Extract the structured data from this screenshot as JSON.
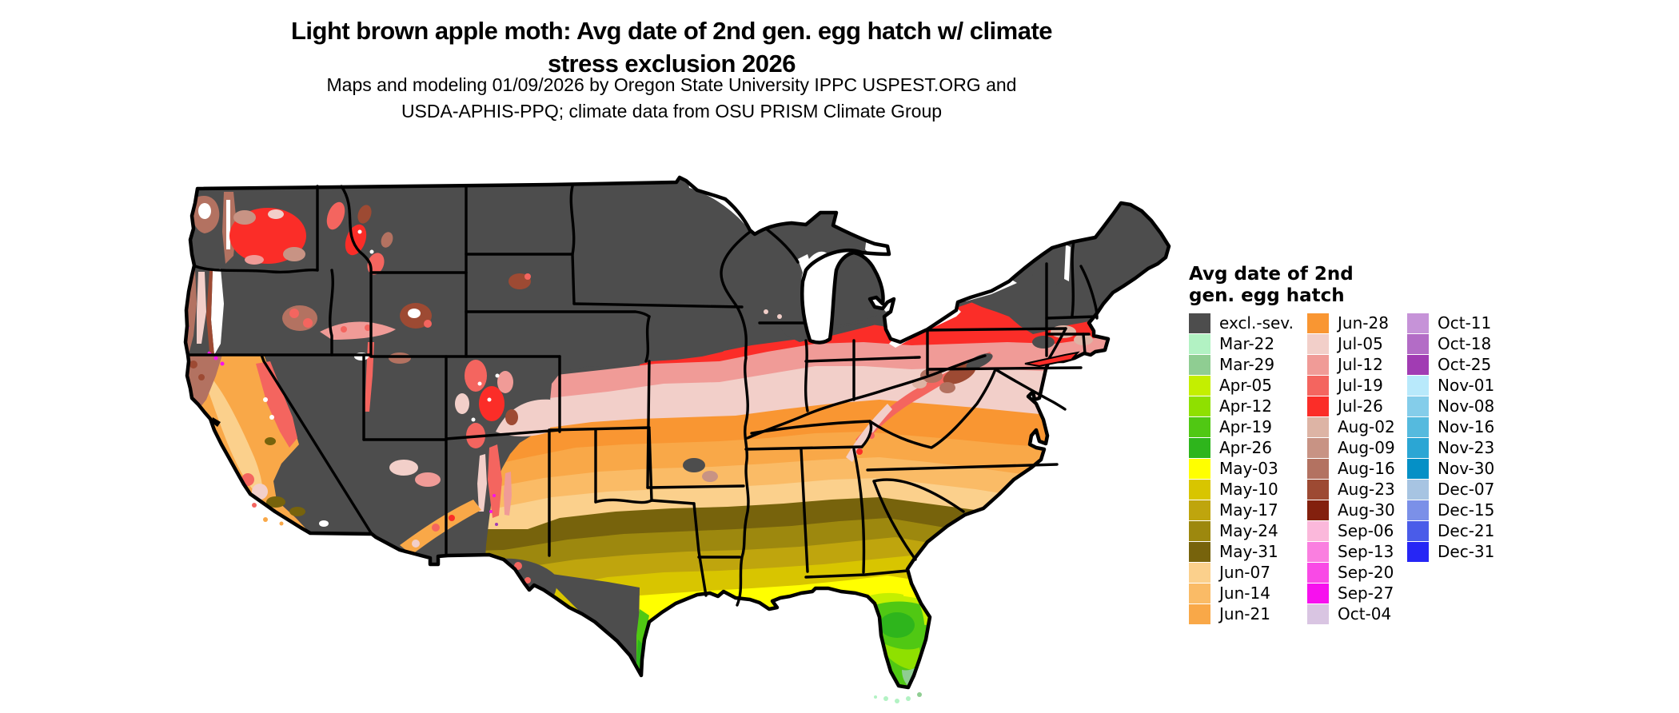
{
  "title": {
    "line1": "Light brown apple moth: Avg date of 2nd gen. egg hatch w/ climate",
    "line2": "stress exclusion 2026"
  },
  "subtitle": {
    "line1": "Maps and modeling 01/09/2026 by Oregon State University IPPC USPEST.ORG and",
    "line2": "USDA-APHIS-PPQ; climate data from OSU PRISM Climate Group"
  },
  "legend": {
    "title_line1": "Avg date of 2nd",
    "title_line2": "gen. egg hatch",
    "columns": [
      {
        "entries": [
          {
            "label": "excl.-sev.",
            "color": "#4D4D4D"
          },
          {
            "label": "Mar-22",
            "color": "#B2F2C3"
          },
          {
            "label": "Mar-29",
            "color": "#8FCD92"
          },
          {
            "label": "Apr-05",
            "color": "#C4EF00"
          },
          {
            "label": "Apr-12",
            "color": "#8FE000"
          },
          {
            "label": "Apr-19",
            "color": "#50C813"
          },
          {
            "label": "Apr-26",
            "color": "#2EB51C"
          },
          {
            "label": "May-03",
            "color": "#FFFF00"
          },
          {
            "label": "May-10",
            "color": "#D8C500"
          },
          {
            "label": "May-17",
            "color": "#BFA50D"
          },
          {
            "label": "May-24",
            "color": "#9D880E"
          },
          {
            "label": "May-31",
            "color": "#77630C"
          },
          {
            "label": "Jun-07",
            "color": "#FBD08C"
          },
          {
            "label": "Jun-14",
            "color": "#FABB66"
          },
          {
            "label": "Jun-21",
            "color": "#F9A848"
          }
        ]
      },
      {
        "entries": [
          {
            "label": "Jun-28",
            "color": "#F99632"
          },
          {
            "label": "Jul-05",
            "color": "#F2CFC9"
          },
          {
            "label": "Jul-12",
            "color": "#F09B97"
          },
          {
            "label": "Jul-19",
            "color": "#F4655F"
          },
          {
            "label": "Jul-26",
            "color": "#FB2D28"
          },
          {
            "label": "Aug-02",
            "color": "#DDB4A5"
          },
          {
            "label": "Aug-09",
            "color": "#C89384"
          },
          {
            "label": "Aug-16",
            "color": "#B37261"
          },
          {
            "label": "Aug-23",
            "color": "#9D4A33"
          },
          {
            "label": "Aug-30",
            "color": "#83200E"
          },
          {
            "label": "Sep-06",
            "color": "#FBB8DB"
          },
          {
            "label": "Sep-13",
            "color": "#FA7FE0"
          },
          {
            "label": "Sep-20",
            "color": "#F94AE6"
          },
          {
            "label": "Sep-27",
            "color": "#F711EE"
          },
          {
            "label": "Oct-04",
            "color": "#D9C5E2"
          }
        ]
      },
      {
        "entries": [
          {
            "label": "Oct-11",
            "color": "#C693D8"
          },
          {
            "label": "Oct-18",
            "color": "#B36CC6"
          },
          {
            "label": "Oct-25",
            "color": "#A13CB3"
          },
          {
            "label": "Nov-01",
            "color": "#B8E9FB"
          },
          {
            "label": "Nov-08",
            "color": "#84CDEA"
          },
          {
            "label": "Nov-16",
            "color": "#55BADE"
          },
          {
            "label": "Nov-23",
            "color": "#2BA6D4"
          },
          {
            "label": "Nov-30",
            "color": "#0590C6"
          },
          {
            "label": "Dec-07",
            "color": "#A7C4E2"
          },
          {
            "label": "Dec-15",
            "color": "#7B90E8"
          },
          {
            "label": "Dec-21",
            "color": "#4A5CE9"
          },
          {
            "label": "Dec-31",
            "color": "#2626F5"
          }
        ]
      }
    ]
  },
  "map": {
    "region": "Contiguous United States",
    "background_color": "#FFFFFF",
    "excluded_color": "#4D4D4D",
    "state_border_color": "#000000"
  }
}
